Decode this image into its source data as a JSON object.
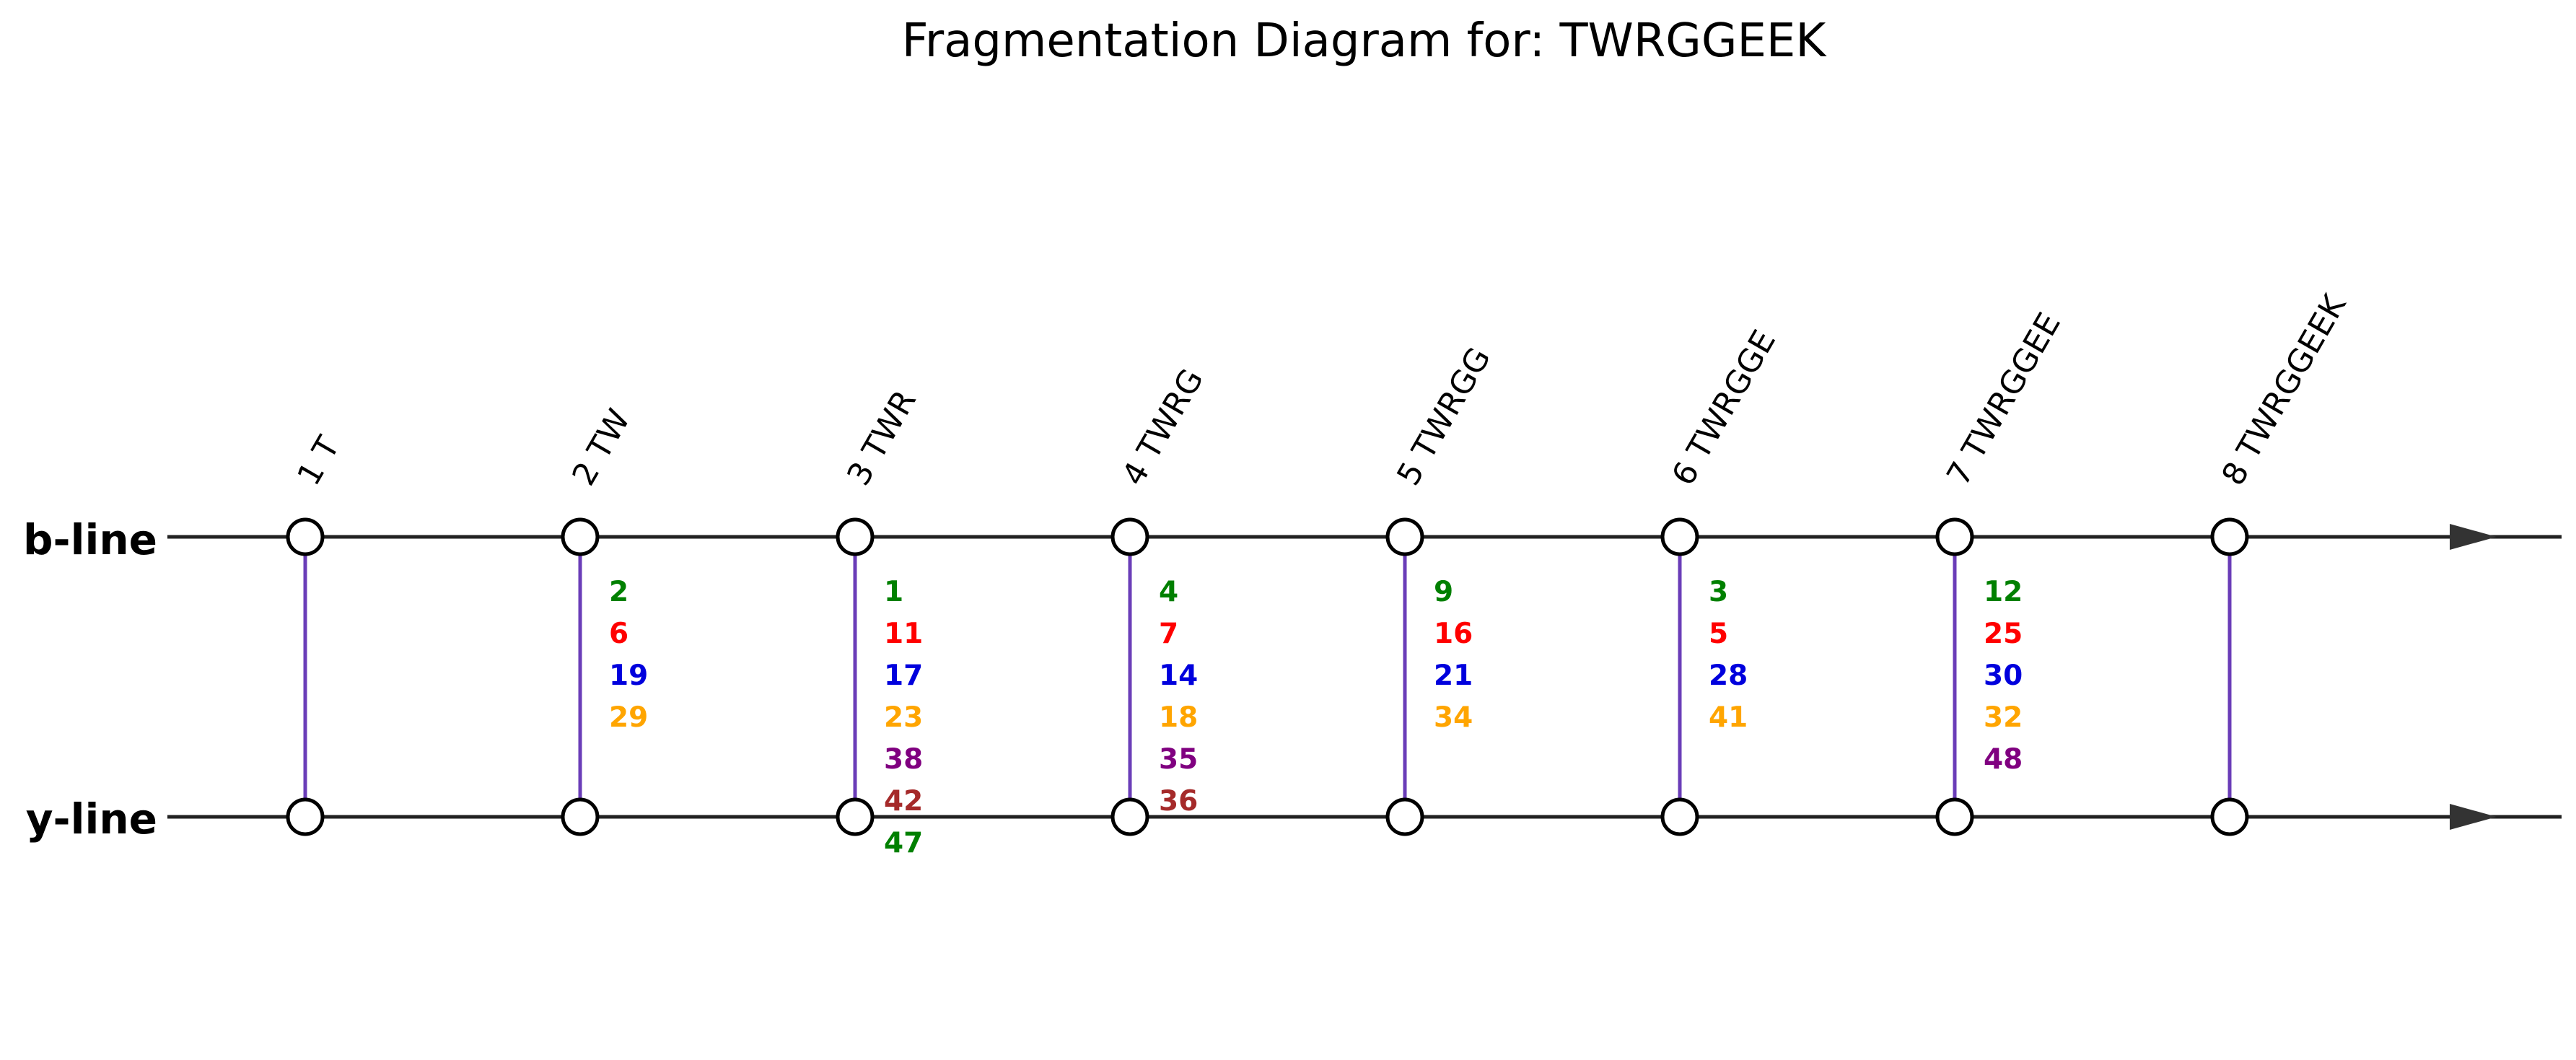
{
  "title": "Fragmentation Diagram for: TWRGGEEK",
  "lines": {
    "b": "b-line",
    "y": "y-line"
  },
  "colors": {
    "axis": "#222222",
    "connector": "#6a3db8",
    "node_fill": "#ffffff",
    "node_stroke": "#000000"
  },
  "palette": [
    "#008000",
    "#ff0000",
    "#0000dd",
    "#ffa500",
    "#800080",
    "#a52a2a",
    "#008000"
  ],
  "fragments": [
    {
      "label": "1 T",
      "numbers": []
    },
    {
      "label": "2 TW",
      "numbers": [
        "2",
        "6",
        "19",
        "29"
      ]
    },
    {
      "label": "3 TWR",
      "numbers": [
        "1",
        "11",
        "17",
        "23",
        "38",
        "42",
        "47"
      ]
    },
    {
      "label": "4 TWRG",
      "numbers": [
        "4",
        "7",
        "14",
        "18",
        "35",
        "36"
      ]
    },
    {
      "label": "5 TWRGG",
      "numbers": [
        "9",
        "16",
        "21",
        "34"
      ]
    },
    {
      "label": "6 TWRGGE",
      "numbers": [
        "3",
        "5",
        "28",
        "41"
      ]
    },
    {
      "label": "7 TWRGGEE",
      "numbers": [
        "12",
        "25",
        "30",
        "32",
        "48"
      ]
    },
    {
      "label": "8 TWRGGEEK",
      "numbers": []
    }
  ]
}
